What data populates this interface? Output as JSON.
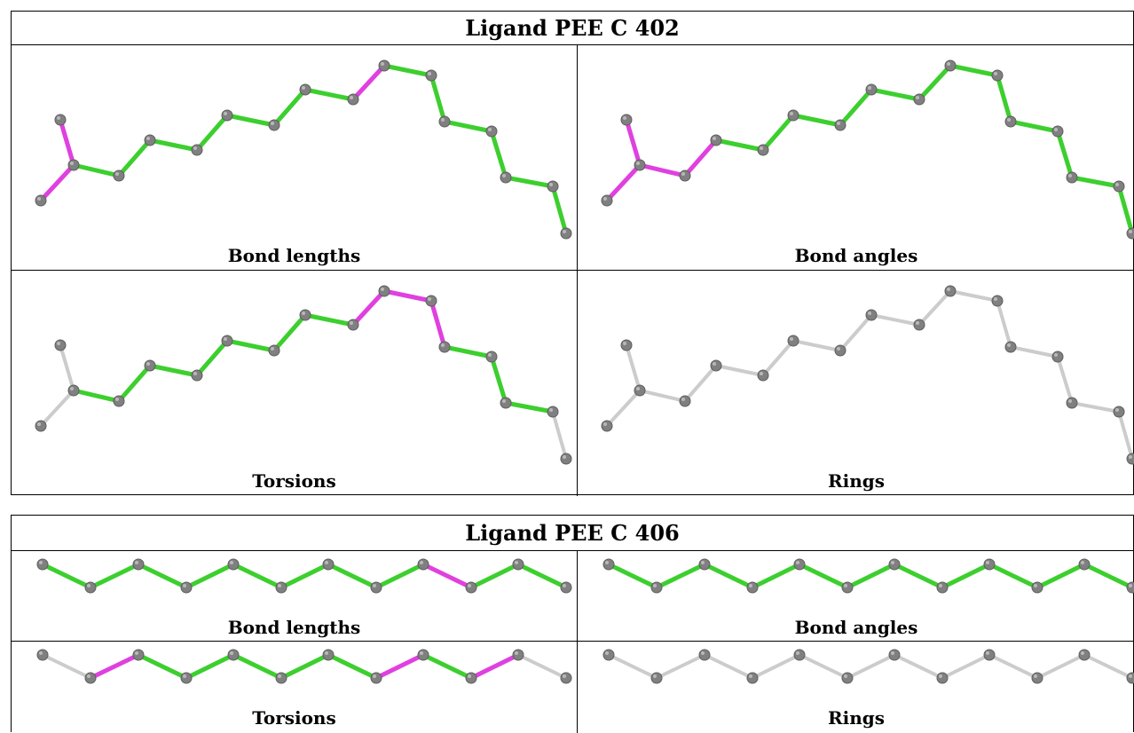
{
  "tables": [
    {
      "title": "Ligand PEE C 402",
      "panels": [
        {
          "label": "Bond lengths",
          "colors": [
            "m",
            "m",
            "g",
            "g",
            "g",
            "g",
            "g",
            "g",
            "g",
            "m",
            "g",
            "g",
            "g",
            "g",
            "g",
            "g"
          ]
        },
        {
          "label": "Bond angles",
          "colors": [
            "m",
            "m",
            "m",
            "m",
            "g",
            "g",
            "g",
            "g",
            "g",
            "g",
            "g",
            "g",
            "g",
            "g",
            "g",
            "g"
          ]
        },
        {
          "label": "Torsions",
          "colors": [
            "x",
            "x",
            "g",
            "g",
            "g",
            "g",
            "g",
            "g",
            "g",
            "m",
            "m",
            "m",
            "g",
            "g",
            "g",
            "x"
          ]
        },
        {
          "label": "Rings",
          "colors": [
            "x",
            "x",
            "x",
            "x",
            "x",
            "x",
            "x",
            "x",
            "x",
            "x",
            "x",
            "x",
            "x",
            "x",
            "x",
            "x"
          ]
        }
      ]
    },
    {
      "title": "Ligand PEE C 406",
      "panels": [
        {
          "label": "Bond lengths",
          "colors": [
            "g",
            "g",
            "g",
            "g",
            "g",
            "g",
            "g",
            "g",
            "m",
            "g",
            "g"
          ]
        },
        {
          "label": "Bond angles",
          "colors": [
            "g",
            "g",
            "g",
            "g",
            "g",
            "g",
            "g",
            "g",
            "g",
            "g",
            "g"
          ]
        },
        {
          "label": "Torsions",
          "colors": [
            "x",
            "m",
            "g",
            "g",
            "g",
            "g",
            "g",
            "m",
            "g",
            "m",
            "x"
          ]
        },
        {
          "label": "Rings",
          "colors": [
            "x",
            "x",
            "x",
            "x",
            "x",
            "x",
            "x",
            "x",
            "x",
            "x",
            "x"
          ]
        }
      ]
    }
  ],
  "bond_colors": {
    "g": "#3ccf2e",
    "m": "#e040e0",
    "x": "#cccccc"
  },
  "atom_color": "#808080"
}
